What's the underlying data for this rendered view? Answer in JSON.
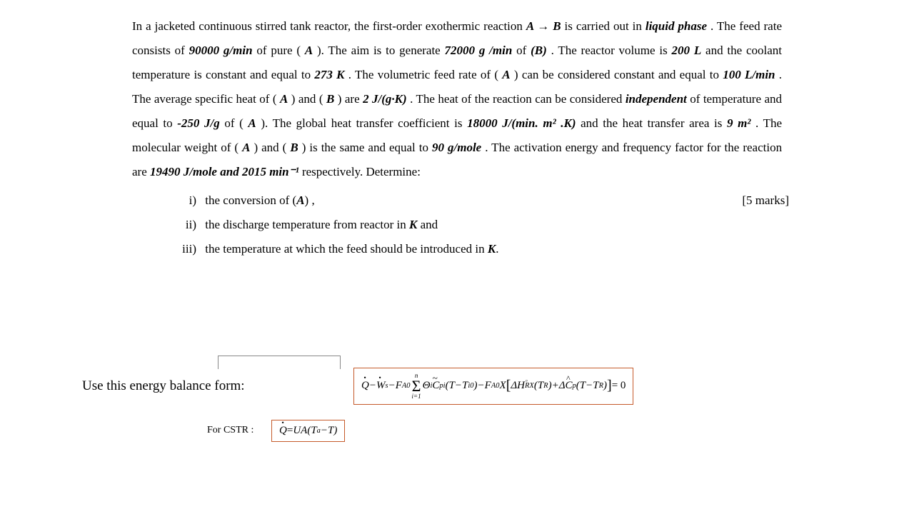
{
  "problem": {
    "p1_a": "In a jacketed continuous stirred tank reactor, the first-order exothermic reaction ",
    "rxn": "A → B",
    "p1_b": " is carried out in ",
    "liquid_phase": "liquid phase",
    "p1_c": ". The feed rate consists of ",
    "feed_rate": "90000 g/min",
    "p1_d": " of pure (",
    "A1": "A",
    "p1_e": "). The aim is to generate ",
    "prod_rate": "72000 g /min",
    "p1_f": " of ",
    "B1": "(B)",
    "p1_g": ". The reactor volume is ",
    "vol": "200 L",
    "p1_h": " and the coolant temperature is constant and equal to ",
    "Tc": "273 K",
    "p1_i": ". The volumetric feed rate of (",
    "A2": "A",
    "p1_j": ")  can be considered constant and equal to ",
    "vflow": "100 L/min",
    "p1_k": ". The average specific heat of (",
    "A3": "A",
    "p1_l": ") and (",
    "B2": "B",
    "p1_m": ") are ",
    "cp": "2 J/(g·K)",
    "p1_n": ". The heat of the reaction can be considered ",
    "indep": "independent",
    "p1_o": " of temperature and equal to ",
    "dH": "-250 J/g",
    "p1_p": " of (",
    "A4": "A",
    "p1_q": "). The global heat transfer coefficient is ",
    "U": "18000 J/(min. m² .K)",
    "p1_r": " and the heat transfer area is ",
    "area": "9 m²",
    "p1_s": ". The molecular weight of (",
    "A5": "A",
    "p1_t": ") and (",
    "B3": "B",
    "p1_u": ") is the same and equal to ",
    "MW": "90 g/mole",
    "p1_v": ". The activation energy and frequency factor for the reaction are ",
    "Ea": "19490 J/mole",
    "and": " and ",
    "A0": "2015 min⁻¹",
    "p1_w": " respectively. Determine:"
  },
  "questions": {
    "i_num": "i)",
    "i_txt_a": "the conversion of  (",
    "i_A": "A",
    "i_txt_b": ") ,",
    "i_marks": "[5 marks]",
    "ii_num": "ii)",
    "ii_txt_a": "the discharge temperature from reactor  in ",
    "ii_K": "K",
    "ii_txt_b": " and",
    "iii_num": "iii)",
    "iii_txt_a": "the temperature at which the feed should be introduced in ",
    "iii_K": "K",
    "iii_txt_b": "."
  },
  "energy_label": "Use this energy balance form:",
  "cstr_label": "For CSTR :",
  "eq1": {
    "Qdot": "Q",
    "minus1": " − ",
    "Wdot": "W",
    "s": "s",
    "minus2": " − ",
    "F1": "F",
    "A0_1": "A0",
    "sum_top": "n",
    "sum_bot": "i=1",
    "Theta": "Θ",
    "i1": "i",
    "C1": "C",
    "pi": "pi",
    "lp1": "(",
    "T1": "T",
    "minus3": " − ",
    "T2": "T",
    "i0": "i0",
    "rp1": ")",
    "minus4": " − ",
    "F2": "F",
    "A0_2": "A0",
    "X": "X",
    "lb": "[",
    "dH": "ΔH",
    "RX": "RX",
    "lp2": "(",
    "TR1": "T",
    "R1": "R",
    "rp2": ")",
    "plus": " + ",
    "dC": "ΔC",
    "p": "p",
    "lp3": "(",
    "T3": "T",
    "minus5": " − ",
    "TR2": "T",
    "R2": "R",
    "rp3": ")",
    "rb": "]",
    "eq0": " = 0"
  },
  "eq2": {
    "Qdot": "Q",
    "eq": " = ",
    "UA": "UA",
    "lp": "(",
    "Ta": "T",
    "a": "a",
    "minus": " − ",
    "T": "T",
    "rp": ")"
  }
}
